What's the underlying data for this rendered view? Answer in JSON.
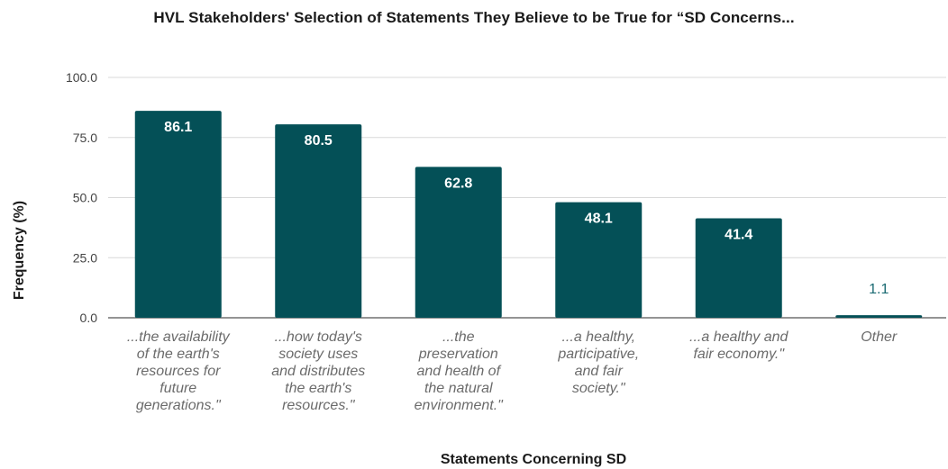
{
  "chart_data": {
    "type": "bar",
    "title": "HVL Stakeholders' Selection of Statements They Believe to be True for “SD Concerns...",
    "xlabel": "Statements Concerning SD",
    "ylabel": "Frequency (%)",
    "ylim": [
      0,
      100
    ],
    "yticks": [
      "0.0",
      "25.0",
      "50.0",
      "75.0",
      "100.0"
    ],
    "grid": true,
    "legend": "none",
    "bar_color": "#045057",
    "categories": [
      [
        "...the availability",
        "of the earth's",
        "resources for",
        "future",
        "generations.\""
      ],
      [
        "...how today's",
        "society uses",
        "and distributes",
        "the earth's",
        "resources.\""
      ],
      [
        "...the",
        "preservation",
        "and health of",
        "the natural",
        "environment.\""
      ],
      [
        "...a healthy,",
        "participative,",
        "and fair",
        "society.\""
      ],
      [
        "...a healthy and",
        "fair economy.\""
      ],
      [
        "Other"
      ]
    ],
    "values": [
      86.1,
      80.5,
      62.8,
      48.1,
      41.4,
      1.1
    ],
    "value_labels": [
      "86.1",
      "80.5",
      "62.8",
      "48.1",
      "41.4",
      "1.1"
    ]
  }
}
